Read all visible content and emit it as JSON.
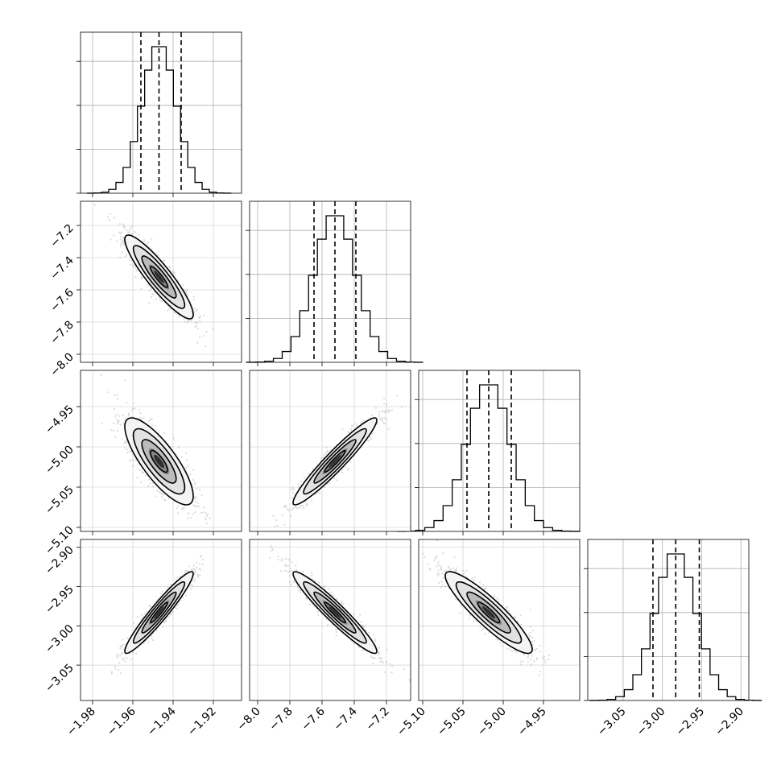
{
  "chart_data": {
    "type": "corner",
    "grid": true,
    "n_params": 4,
    "params": [
      {
        "range": [
          -1.986,
          -1.906
        ],
        "ticks": [
          -1.98,
          -1.96,
          -1.94,
          -1.92
        ],
        "tick_labels": [
          "−1.98",
          "−1.96",
          "−1.94",
          "−1.92"
        ],
        "mean": -1.947,
        "std": 0.0085
      },
      {
        "range": [
          -8.05,
          -7.05
        ],
        "ticks": [
          -8.0,
          -7.8,
          -7.6,
          -7.4,
          -7.2
        ],
        "tick_labels": [
          "−8.0",
          "−7.8",
          "−7.6",
          "−7.4",
          "−7.2"
        ],
        "mean": -7.52,
        "std": 0.13
      },
      {
        "range": [
          -5.105,
          -4.905
        ],
        "ticks": [
          -5.1,
          -5.05,
          -5.0,
          -4.95
        ],
        "tick_labels": [
          "−5.10",
          "−5.05",
          "−5.00",
          "−4.95"
        ],
        "mean": -5.018,
        "std": 0.027
      },
      {
        "range": [
          -3.095,
          -2.89
        ],
        "ticks": [
          -3.05,
          -3.0,
          -2.95,
          -2.9
        ],
        "tick_labels": [
          "−3.05",
          "−3.00",
          "−2.95",
          "−2.90"
        ],
        "mean": -2.983,
        "std": 0.026
      }
    ],
    "quantiles": [
      [
        -1.956,
        -1.947,
        -1.936
      ],
      [
        -7.65,
        -7.52,
        -7.39
      ],
      [
        -5.045,
        -5.018,
        -4.99
      ],
      [
        -3.012,
        -2.983,
        -2.953
      ]
    ],
    "correlations": [
      [
        1.0,
        -0.9,
        -0.8,
        0.95
      ],
      [
        -0.9,
        1.0,
        0.95,
        -0.95
      ],
      [
        -0.8,
        0.95,
        1.0,
        -0.9
      ],
      [
        0.95,
        -0.95,
        -0.9,
        1.0
      ]
    ],
    "hist_bins": 20,
    "colors": {
      "samples": "#7f7f7f",
      "density": "#000000",
      "grid": "#b0b0b0",
      "frame": "#000000"
    }
  }
}
